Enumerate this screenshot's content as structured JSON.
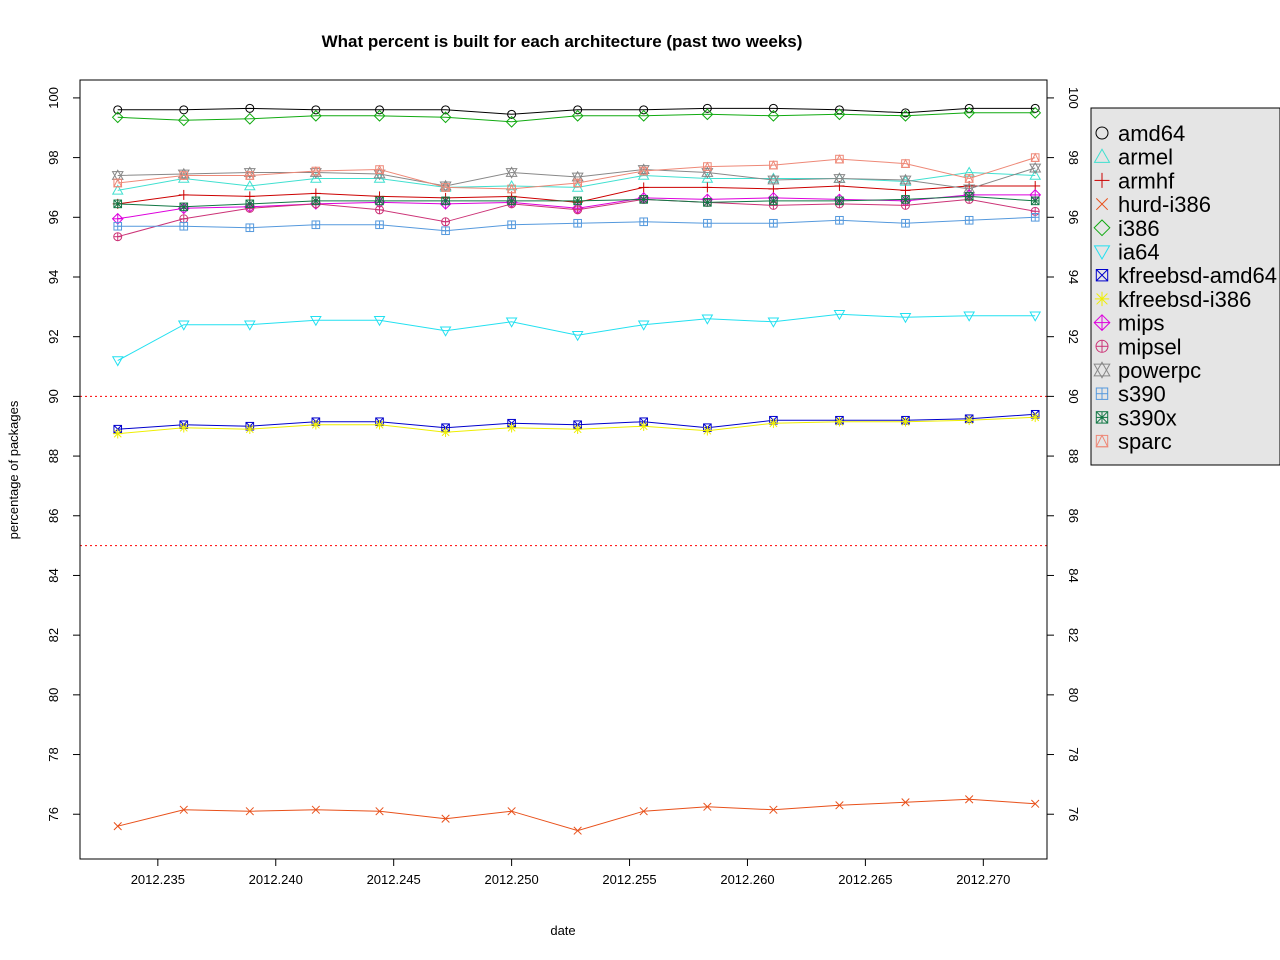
{
  "chart_data": {
    "type": "line",
    "title": "What percent is built for each architecture (past two weeks)",
    "xlabel": "date",
    "ylabel": "percentage of packages",
    "xlim": [
      2012.2317,
      2012.2727
    ],
    "ylim": [
      74.5,
      100.6
    ],
    "x_ticks": [
      "2012.235",
      "2012.240",
      "2012.245",
      "2012.250",
      "2012.255",
      "2012.260",
      "2012.265",
      "2012.270"
    ],
    "y_ticks": [
      "76",
      "78",
      "80",
      "82",
      "84",
      "86",
      "88",
      "90",
      "92",
      "94",
      "96",
      "98",
      "100"
    ],
    "grid": false,
    "legend_position": "right",
    "reference_lines": [
      {
        "y": 90,
        "color": "#ff0000",
        "style": "dotted"
      },
      {
        "y": 85,
        "color": "#ff0000",
        "style": "dotted"
      }
    ],
    "x": [
      2012.2333,
      2012.2361,
      2012.2389,
      2012.2417,
      2012.2444,
      2012.2472,
      2012.25,
      2012.2528,
      2012.2556,
      2012.2583,
      2012.2611,
      2012.2639,
      2012.2667,
      2012.2694,
      2012.2722
    ],
    "series": [
      {
        "name": "amd64",
        "color": "#000000",
        "marker": "circle",
        "values": [
          99.6,
          99.6,
          99.65,
          99.6,
          99.6,
          99.6,
          99.45,
          99.6,
          99.6,
          99.65,
          99.65,
          99.6,
          99.5,
          99.65,
          99.65
        ]
      },
      {
        "name": "armel",
        "color": "#40e0d0",
        "marker": "triangle-up",
        "values": [
          96.9,
          97.3,
          97.05,
          97.3,
          97.3,
          97.0,
          97.05,
          97.0,
          97.4,
          97.3,
          97.3,
          97.3,
          97.2,
          97.5,
          97.4
        ]
      },
      {
        "name": "armhf",
        "color": "#cc0000",
        "marker": "plus",
        "values": [
          96.45,
          96.75,
          96.7,
          96.8,
          96.7,
          96.65,
          96.7,
          96.5,
          97.0,
          97.0,
          96.95,
          97.05,
          96.9,
          97.05,
          97.05
        ]
      },
      {
        "name": "hurd-i386",
        "color": "#e8501a",
        "marker": "x",
        "values": [
          75.6,
          76.15,
          76.1,
          76.15,
          76.1,
          75.85,
          76.1,
          75.45,
          76.1,
          76.25,
          76.15,
          76.3,
          76.4,
          76.5,
          76.35
        ]
      },
      {
        "name": "i386",
        "color": "#11aa11",
        "marker": "diamond",
        "values": [
          99.35,
          99.25,
          99.3,
          99.4,
          99.4,
          99.35,
          99.2,
          99.4,
          99.4,
          99.45,
          99.4,
          99.45,
          99.4,
          99.5,
          99.5
        ]
      },
      {
        "name": "ia64",
        "color": "#22e0f0",
        "marker": "triangle-down",
        "values": [
          91.2,
          92.4,
          92.4,
          92.55,
          92.55,
          92.2,
          92.5,
          92.05,
          92.4,
          92.6,
          92.5,
          92.75,
          92.65,
          92.7,
          92.7
        ]
      },
      {
        "name": "kfreebsd-amd64",
        "color": "#0000cc",
        "marker": "box-x",
        "values": [
          88.9,
          89.05,
          89.0,
          89.15,
          89.15,
          88.95,
          89.1,
          89.05,
          89.15,
          88.95,
          89.2,
          89.2,
          89.2,
          89.25,
          89.4
        ]
      },
      {
        "name": "kfreebsd-i386",
        "color": "#eeee00",
        "marker": "asterisk",
        "values": [
          88.75,
          88.95,
          88.9,
          89.05,
          89.05,
          88.8,
          88.95,
          88.9,
          89.0,
          88.85,
          89.1,
          89.15,
          89.15,
          89.2,
          89.3
        ]
      },
      {
        "name": "mips",
        "color": "#dd00dd",
        "marker": "diamond-plus",
        "values": [
          95.95,
          96.3,
          96.35,
          96.45,
          96.5,
          96.45,
          96.5,
          96.3,
          96.65,
          96.6,
          96.65,
          96.6,
          96.55,
          96.75,
          96.75
        ]
      },
      {
        "name": "mipsel",
        "color": "#cc3377",
        "marker": "circle-plus",
        "values": [
          95.35,
          95.95,
          96.3,
          96.45,
          96.25,
          95.85,
          96.45,
          96.25,
          96.6,
          96.5,
          96.4,
          96.45,
          96.4,
          96.6,
          96.2
        ]
      },
      {
        "name": "powerpc",
        "color": "#888888",
        "marker": "star-of-david",
        "values": [
          97.4,
          97.45,
          97.5,
          97.5,
          97.45,
          97.05,
          97.5,
          97.35,
          97.6,
          97.5,
          97.25,
          97.3,
          97.25,
          96.95,
          97.65
        ]
      },
      {
        "name": "s390",
        "color": "#5599dd",
        "marker": "box-plus",
        "values": [
          95.7,
          95.7,
          95.65,
          95.75,
          95.75,
          95.55,
          95.75,
          95.8,
          95.85,
          95.8,
          95.8,
          95.9,
          95.8,
          95.9,
          96.0
        ]
      },
      {
        "name": "s390x",
        "color": "#117744",
        "marker": "box-asterisk",
        "values": [
          96.45,
          96.35,
          96.45,
          96.55,
          96.55,
          96.55,
          96.55,
          96.55,
          96.6,
          96.5,
          96.55,
          96.55,
          96.6,
          96.7,
          96.55
        ]
      },
      {
        "name": "sparc",
        "color": "#ee8877",
        "marker": "box-triangle",
        "values": [
          97.15,
          97.4,
          97.4,
          97.55,
          97.6,
          97.0,
          96.95,
          97.15,
          97.55,
          97.7,
          97.75,
          97.95,
          97.8,
          97.3,
          98.0
        ]
      }
    ]
  }
}
